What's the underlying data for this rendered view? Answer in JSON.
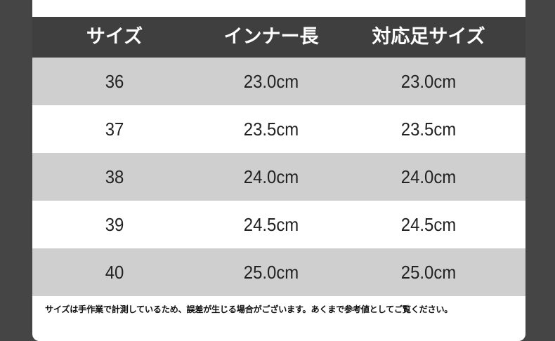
{
  "table": {
    "headers": [
      "サイズ",
      "インナー長",
      "対応足サイズ"
    ],
    "rows": [
      [
        "36",
        "23.0cm",
        "23.0cm"
      ],
      [
        "37",
        "23.5cm",
        "23.5cm"
      ],
      [
        "38",
        "24.0cm",
        "24.0cm"
      ],
      [
        "39",
        "24.5cm",
        "24.5cm"
      ],
      [
        "40",
        "25.0cm",
        "25.0cm"
      ]
    ]
  },
  "note": "サイズは手作業で計測しているため、誤差が生じる場合がございます。あくまで参考値としてご覧ください。",
  "colors": {
    "header_bg": "#3f3f3f",
    "stripe": "#cfcfcf",
    "background": "#454545"
  }
}
